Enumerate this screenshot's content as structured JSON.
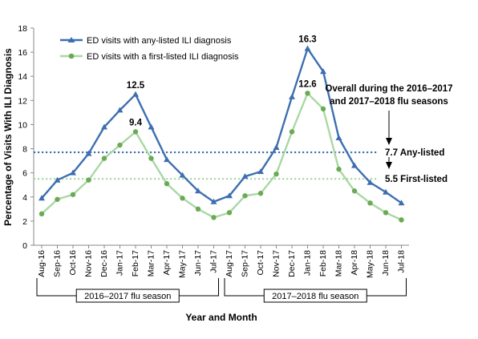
{
  "chart_data": {
    "type": "line",
    "xlabel": "Year and Month",
    "ylabel": "Percentage of Visits With ILI Diagnosis",
    "ylim": [
      0,
      18
    ],
    "yticks": [
      "0",
      "2",
      "4",
      "6",
      "8",
      "10",
      "12",
      "14",
      "16",
      "18"
    ],
    "categories": [
      "Aug-16",
      "Sep-16",
      "Oct-16",
      "Nov-16",
      "Dec-16",
      "Jan-17",
      "Feb-17",
      "Mar-17",
      "Apr-17",
      "May-17",
      "Jun-17",
      "Jul-17",
      "Aug-17",
      "Sep-17",
      "Oct-17",
      "Nov-17",
      "Dec-17",
      "Jan-18",
      "Feb-18",
      "Mar-18",
      "Apr-18",
      "May-18",
      "Jun-18",
      "Jul-18"
    ],
    "series": [
      {
        "name": "ED visits with any-listed ILI diagnosis",
        "color": "#3d6fb0",
        "marker": "triangle",
        "values": [
          3.9,
          5.4,
          6.0,
          7.6,
          9.8,
          11.2,
          12.5,
          9.8,
          7.1,
          5.8,
          4.5,
          3.6,
          4.1,
          5.7,
          6.1,
          8.1,
          12.3,
          16.3,
          14.4,
          8.9,
          6.6,
          5.2,
          4.4,
          3.5
        ]
      },
      {
        "name": "ED visits with a first-listed ILI diagnosis",
        "color": "#a9d8a3",
        "marker_color": "#6aaa55",
        "marker": "circle",
        "values": [
          2.6,
          3.8,
          4.2,
          5.4,
          7.2,
          8.3,
          9.4,
          7.2,
          5.1,
          3.9,
          3.0,
          2.3,
          2.7,
          4.1,
          4.3,
          5.9,
          9.4,
          12.6,
          11.3,
          6.3,
          4.5,
          3.5,
          2.7,
          2.1
        ]
      }
    ],
    "peak_labels": [
      {
        "series": 0,
        "index": 6,
        "text": "12.5"
      },
      {
        "series": 1,
        "index": 6,
        "text": "9.4"
      },
      {
        "series": 0,
        "index": 17,
        "text": "16.3"
      },
      {
        "series": 1,
        "index": 17,
        "text": "12.6"
      }
    ],
    "reference_lines": [
      {
        "value": 7.7,
        "color": "#3d6fb0",
        "label": "7.7 Any-listed"
      },
      {
        "value": 5.5,
        "color": "#a9d8a3",
        "label": "5.5 First-listed"
      }
    ],
    "annotation": {
      "line1": "Overall during the 2016–2017",
      "line2": "and 2017–2018 flu seasons"
    },
    "season_brackets": [
      {
        "label": "2016–2017 flu season",
        "start_index": 0,
        "end_index": 11
      },
      {
        "label": "2017–2018 flu season",
        "start_index": 12,
        "end_index": 23
      }
    ],
    "legend_position": "top-left",
    "grid": false
  }
}
